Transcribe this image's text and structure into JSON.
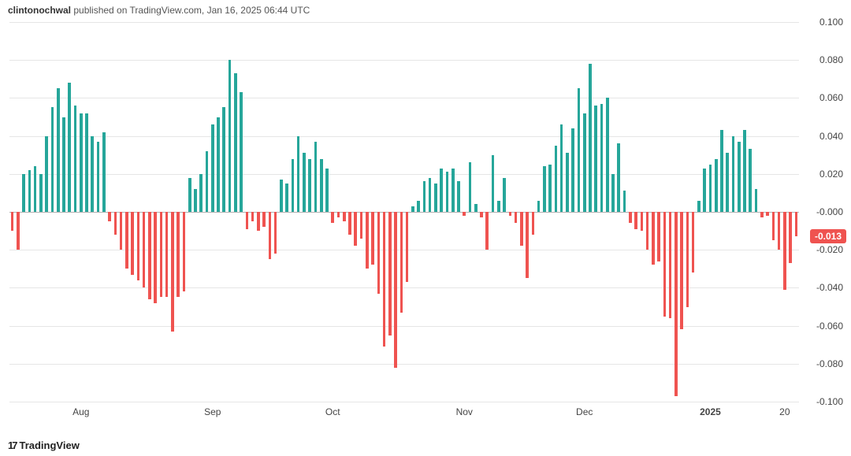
{
  "caption": {
    "user": "clintonochwal",
    "rest": " published on TradingView.com, Jan 16, 2025 06:44 UTC"
  },
  "watermark": "TradingView",
  "chart": {
    "type": "histogram",
    "pos_color": "#26a69a",
    "neg_color": "#ef5350",
    "background_color": "#ffffff",
    "grid_color": "#e6e6e6",
    "zero_color": "#b0b0b0",
    "label_fontcolor": "#444444",
    "label_fontsize": 12,
    "ylim": [
      -0.1,
      0.1
    ],
    "ytick_step": 0.02,
    "yticks": [
      0.1,
      0.08,
      0.06,
      0.04,
      0.02,
      -0.0,
      -0.02,
      -0.04,
      -0.06,
      -0.08,
      -0.1
    ],
    "ytick_labels": [
      "0.100",
      "0.080",
      "0.060",
      "0.040",
      "0.020",
      "-0.000",
      "-0.020",
      "-0.040",
      "-0.060",
      "-0.080",
      "-0.100"
    ],
    "bar_gap_ratio": 0.5,
    "last_value": -0.013,
    "last_value_display": "-0.013",
    "badge_color": "#ef5350",
    "xticks": [
      {
        "index": 12,
        "label": "Aug",
        "bold": false
      },
      {
        "index": 35,
        "label": "Sep",
        "bold": false
      },
      {
        "index": 56,
        "label": "Oct",
        "bold": false
      },
      {
        "index": 79,
        "label": "Nov",
        "bold": false
      },
      {
        "index": 100,
        "label": "Dec",
        "bold": false
      },
      {
        "index": 122,
        "label": "2025",
        "bold": true
      },
      {
        "index": 135,
        "label": "20",
        "bold": false
      }
    ],
    "values": [
      -0.01,
      -0.02,
      0.02,
      0.022,
      0.024,
      0.02,
      0.04,
      0.055,
      0.065,
      0.05,
      0.068,
      0.056,
      0.052,
      0.052,
      0.04,
      0.037,
      0.042,
      -0.005,
      -0.012,
      -0.02,
      -0.03,
      -0.033,
      -0.036,
      -0.04,
      -0.046,
      -0.048,
      -0.045,
      -0.045,
      -0.063,
      -0.045,
      -0.042,
      0.018,
      0.012,
      0.02,
      0.032,
      0.046,
      0.05,
      0.055,
      0.08,
      0.073,
      0.063,
      -0.009,
      -0.005,
      -0.01,
      -0.008,
      -0.025,
      -0.022,
      0.017,
      0.015,
      0.028,
      0.04,
      0.031,
      0.028,
      0.037,
      0.028,
      0.023,
      -0.006,
      -0.003,
      -0.005,
      -0.012,
      -0.018,
      -0.014,
      -0.03,
      -0.028,
      -0.043,
      -0.071,
      -0.065,
      -0.082,
      -0.053,
      -0.037,
      0.003,
      0.006,
      0.016,
      0.018,
      0.015,
      0.023,
      0.021,
      0.023,
      0.016,
      -0.002,
      0.026,
      0.004,
      -0.003,
      -0.02,
      0.03,
      0.006,
      0.018,
      -0.002,
      -0.006,
      -0.018,
      -0.035,
      -0.012,
      0.006,
      0.024,
      0.025,
      0.035,
      0.046,
      0.031,
      0.044,
      0.065,
      0.052,
      0.078,
      0.056,
      0.057,
      0.06,
      0.02,
      0.036,
      0.011,
      -0.006,
      -0.009,
      -0.01,
      -0.02,
      -0.028,
      -0.026,
      -0.055,
      -0.056,
      -0.097,
      -0.062,
      -0.05,
      -0.032,
      0.006,
      0.023,
      0.025,
      0.028,
      0.043,
      0.031,
      0.04,
      0.037,
      0.043,
      0.033,
      0.012,
      -0.003,
      -0.002,
      -0.015,
      -0.02,
      -0.041,
      -0.027,
      -0.013
    ]
  }
}
